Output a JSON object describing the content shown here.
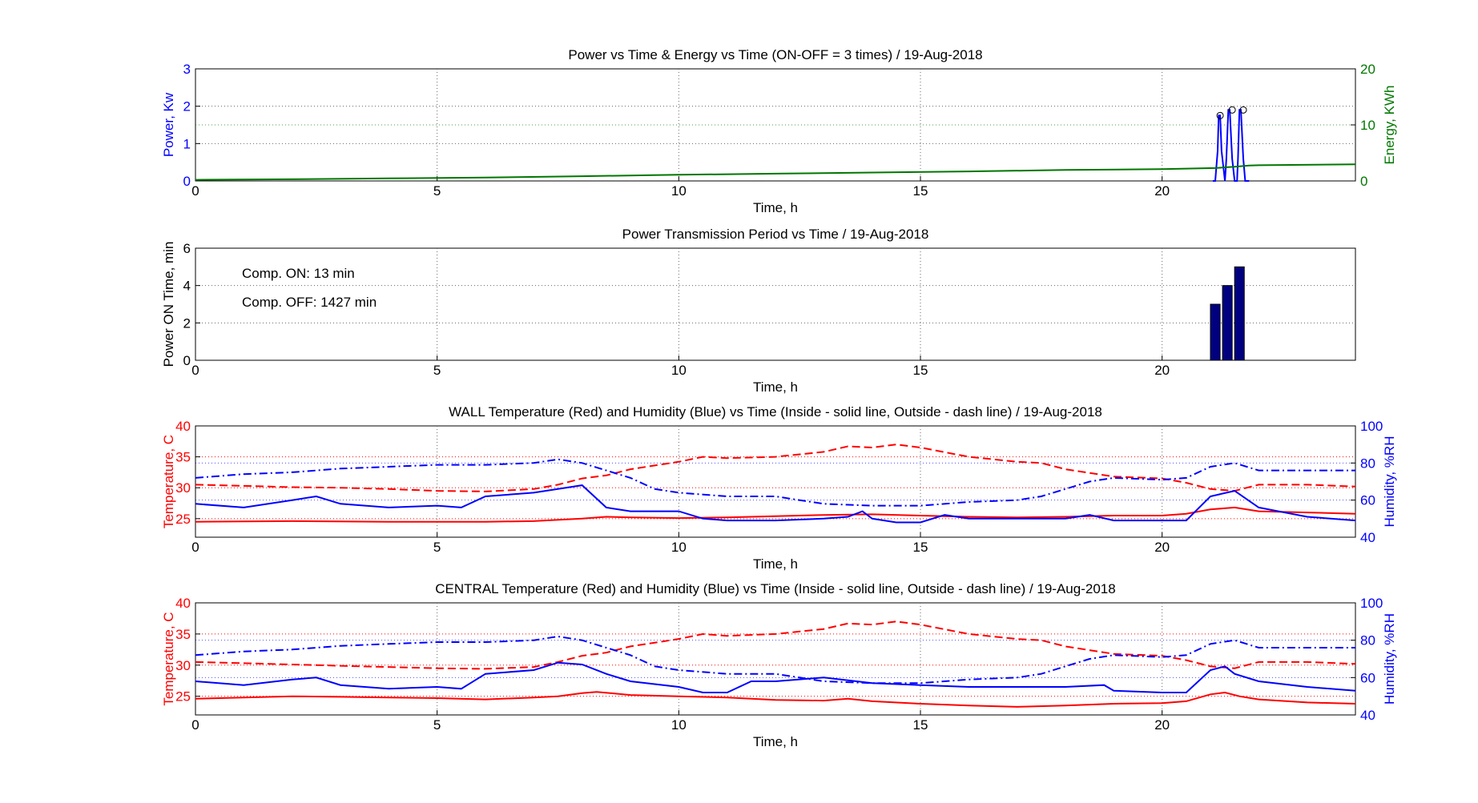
{
  "colors": {
    "power": "#0000ff",
    "energy": "#007700",
    "temperature": "#ff0000",
    "humidity": "#0000ff",
    "bar": "#000080",
    "grid": "#666666",
    "axis": "#000000"
  },
  "chart_data": [
    {
      "id": "power",
      "type": "line",
      "title": "Power vs Time & Energy vs Time (ON-OFF = 3 times) / 19-Aug-2018",
      "xlabel": "Time, h",
      "ylabel": "Power, Kw",
      "y2label": "Energy, KWh",
      "xlim": [
        0,
        24
      ],
      "ylim": [
        0,
        3
      ],
      "y2lim": [
        0,
        20
      ],
      "x_ticks": [
        0,
        5,
        10,
        15,
        20
      ],
      "y_ticks": [
        0,
        1,
        2,
        3
      ],
      "y2_ticks": [
        0,
        10,
        20
      ],
      "grid": true,
      "series": [
        {
          "axis": "left",
          "style": "stem",
          "x": [
            21.05,
            21.1,
            21.15,
            21.17,
            21.2,
            21.23,
            21.3,
            21.33,
            21.37,
            21.4,
            21.45,
            21.5,
            21.55,
            21.57,
            21.6,
            21.63,
            21.68,
            21.72,
            21.75,
            21.8
          ],
          "y": [
            0,
            0,
            0.8,
            1.75,
            1.75,
            0.8,
            0,
            0.6,
            1.9,
            1.9,
            0.6,
            0,
            0,
            0.6,
            1.9,
            1.9,
            0.6,
            0,
            0,
            0
          ],
          "markers": [
            [
              21.2,
              1.75
            ],
            [
              21.45,
              1.9
            ],
            [
              21.68,
              1.9
            ]
          ]
        },
        {
          "axis": "right",
          "style": "line",
          "x": [
            0,
            2,
            4,
            6,
            8,
            10,
            12,
            14,
            16,
            18,
            20,
            21.1,
            21.5,
            21.8,
            22,
            24
          ],
          "y": [
            0.2,
            0.3,
            0.45,
            0.6,
            0.85,
            1.1,
            1.3,
            1.5,
            1.7,
            1.95,
            2.1,
            2.3,
            2.55,
            2.75,
            2.8,
            2.95
          ]
        }
      ]
    },
    {
      "id": "period",
      "type": "bar",
      "title": "Power Transmission Period vs Time / 19-Aug-2018",
      "xlabel": "Time, h",
      "ylabel": "Power ON Time, min",
      "xlim": [
        0,
        24
      ],
      "ylim": [
        0,
        6
      ],
      "x_ticks": [
        0,
        5,
        10,
        15,
        20
      ],
      "y_ticks": [
        0,
        2,
        4,
        6
      ],
      "grid": true,
      "bar_width": 0.2,
      "x": [
        21.1,
        21.35,
        21.6
      ],
      "values": [
        3,
        4,
        5
      ],
      "annotations": [
        "Comp. ON: 13 min",
        "Comp. OFF: 1427 min"
      ]
    },
    {
      "id": "wall",
      "type": "line",
      "title": "WALL Temperature (Red) and Humidity (Blue) vs Time (Inside - solid line, Outside - dash line) / 19-Aug-2018",
      "xlabel": "Time, h",
      "ylabel": "Temperature, C",
      "y2label": "Humidity, %RH",
      "xlim": [
        0,
        24
      ],
      "ylim": [
        22,
        40
      ],
      "y2lim": [
        40,
        100
      ],
      "x_ticks": [
        0,
        5,
        10,
        15,
        20
      ],
      "y_ticks": [
        25,
        30,
        35,
        40
      ],
      "y2_ticks": [
        40,
        60,
        80,
        100
      ],
      "grid": true,
      "series": [
        {
          "color": "red",
          "dash": "solid",
          "axis": "left",
          "x": [
            0,
            2,
            4,
            6,
            7,
            8,
            8.5,
            9,
            10,
            11,
            12,
            13,
            14,
            15,
            16,
            17,
            18,
            19,
            20,
            20.5,
            21,
            21.5,
            22,
            23,
            24
          ],
          "y": [
            24.5,
            24.6,
            24.5,
            24.5,
            24.6,
            25.0,
            25.3,
            25.2,
            25.1,
            25.2,
            25.4,
            25.6,
            25.7,
            25.5,
            25.3,
            25.2,
            25.3,
            25.5,
            25.5,
            25.8,
            26.5,
            26.8,
            26.2,
            26.0,
            25.8
          ]
        },
        {
          "color": "red",
          "dash": "dashed",
          "axis": "left",
          "x": [
            0,
            1,
            2,
            3,
            4,
            5,
            6,
            7,
            7.5,
            8,
            8.5,
            9,
            10,
            10.5,
            11,
            12,
            13,
            13.5,
            14,
            14.5,
            15,
            16,
            17,
            17.5,
            18,
            19,
            20,
            20.5,
            21,
            21.5,
            22,
            23,
            24
          ],
          "y": [
            30.5,
            30.3,
            30.1,
            30.0,
            29.8,
            29.5,
            29.4,
            29.8,
            30.5,
            31.5,
            32.0,
            33.0,
            34.2,
            35.0,
            34.8,
            35.0,
            35.8,
            36.7,
            36.5,
            37.0,
            36.5,
            35.0,
            34.2,
            34.0,
            33.0,
            31.8,
            31.5,
            30.8,
            29.8,
            29.5,
            30.5,
            30.5,
            30.2
          ]
        },
        {
          "color": "blue",
          "dash": "solid",
          "axis": "right",
          "x": [
            0,
            1,
            2,
            2.5,
            3,
            4,
            5,
            5.5,
            6,
            7,
            7.5,
            8,
            8.5,
            9,
            10,
            10.5,
            11,
            12,
            13,
            13.5,
            13.8,
            14,
            14.5,
            15,
            15.5,
            16,
            17,
            18,
            18.5,
            19,
            20,
            20.5,
            21,
            21.5,
            22,
            23,
            24
          ],
          "y": [
            58,
            56,
            60,
            62,
            58,
            56,
            57,
            56,
            62,
            64,
            66,
            68,
            56,
            54,
            54,
            50,
            49,
            49,
            50,
            51,
            54,
            50,
            48,
            48,
            52,
            50,
            50,
            50,
            52,
            49,
            49,
            49,
            62,
            65,
            56,
            51,
            49
          ]
        },
        {
          "color": "blue",
          "dash": "dashdot",
          "axis": "right",
          "x": [
            0,
            1,
            2,
            3,
            4,
            5,
            6,
            7,
            7.5,
            8,
            8.5,
            9,
            9.5,
            10,
            11,
            12,
            12.5,
            13,
            14,
            15,
            16,
            17,
            17.5,
            18,
            18.5,
            19,
            20,
            20.5,
            21,
            21.5,
            22,
            23,
            24
          ],
          "y": [
            72,
            74,
            75,
            77,
            78,
            79,
            79,
            80,
            82,
            80,
            76,
            72,
            66,
            64,
            62,
            62,
            60,
            58,
            57,
            57,
            59,
            60,
            62,
            66,
            70,
            72,
            71,
            72,
            78,
            80,
            76,
            76,
            76
          ]
        }
      ]
    },
    {
      "id": "central",
      "type": "line",
      "title": "CENTRAL Temperature (Red) and Humidity (Blue) vs Time (Inside - solid line, Outside - dash line) / 19-Aug-2018",
      "xlabel": "Time, h",
      "ylabel": "Temperature, C",
      "y2label": "Humidity, %RH",
      "xlim": [
        0,
        24
      ],
      "ylim": [
        22,
        40
      ],
      "y2lim": [
        40,
        100
      ],
      "x_ticks": [
        0,
        5,
        10,
        15,
        20
      ],
      "y_ticks": [
        25,
        30,
        35,
        40
      ],
      "y2_ticks": [
        40,
        60,
        80,
        100
      ],
      "grid": true,
      "series": [
        {
          "color": "red",
          "dash": "solid",
          "axis": "left",
          "x": [
            0,
            1,
            2,
            3,
            4,
            5,
            6,
            7,
            7.5,
            8,
            8.3,
            9,
            10,
            11,
            12,
            13,
            13.5,
            14,
            15,
            16,
            17,
            18,
            19,
            20,
            20.5,
            21,
            21.3,
            21.6,
            22,
            23,
            24
          ],
          "y": [
            24.6,
            24.8,
            25.0,
            24.9,
            24.8,
            24.7,
            24.5,
            24.8,
            25.0,
            25.5,
            25.7,
            25.2,
            25.0,
            24.8,
            24.4,
            24.3,
            24.6,
            24.2,
            23.8,
            23.5,
            23.3,
            23.5,
            23.8,
            23.9,
            24.2,
            25.3,
            25.6,
            25.0,
            24.5,
            24.0,
            23.8
          ]
        },
        {
          "color": "red",
          "dash": "dashed",
          "axis": "left",
          "x": [
            0,
            1,
            2,
            3,
            4,
            5,
            6,
            7,
            7.5,
            8,
            8.5,
            9,
            10,
            10.5,
            11,
            12,
            13,
            13.5,
            14,
            14.5,
            15,
            16,
            17,
            17.5,
            18,
            19,
            20,
            20.5,
            21,
            21.5,
            22,
            23,
            24
          ],
          "y": [
            30.5,
            30.3,
            30.1,
            29.9,
            29.7,
            29.5,
            29.4,
            29.7,
            30.5,
            31.5,
            32.0,
            33.0,
            34.2,
            35.0,
            34.7,
            35.0,
            35.8,
            36.7,
            36.5,
            37.0,
            36.5,
            35.0,
            34.2,
            34.0,
            33.0,
            31.8,
            31.5,
            30.8,
            29.8,
            29.5,
            30.5,
            30.5,
            30.2
          ]
        },
        {
          "color": "blue",
          "dash": "solid",
          "axis": "right",
          "x": [
            0,
            1,
            2,
            2.5,
            3,
            4,
            5,
            5.5,
            6,
            7,
            7.5,
            8,
            8.5,
            9,
            10,
            10.5,
            11,
            11.5,
            12,
            13,
            14,
            15,
            16,
            17,
            18,
            18.8,
            19,
            20,
            20.5,
            21,
            21.3,
            21.5,
            22,
            23,
            24
          ],
          "y": [
            58,
            56,
            59,
            60,
            56,
            54,
            55,
            54,
            62,
            64,
            68,
            67,
            62,
            58,
            55,
            52,
            52,
            58,
            58,
            60,
            57,
            56,
            55,
            55,
            55,
            56,
            53,
            52,
            52,
            64,
            66,
            62,
            58,
            55,
            53
          ]
        },
        {
          "color": "blue",
          "dash": "dashdot",
          "axis": "right",
          "x": [
            0,
            1,
            2,
            3,
            4,
            5,
            6,
            7,
            7.5,
            8,
            8.5,
            9,
            9.5,
            10,
            11,
            12,
            12.5,
            13,
            14,
            15,
            16,
            17,
            17.5,
            18,
            18.5,
            19,
            20,
            20.5,
            21,
            21.5,
            22,
            23,
            24
          ],
          "y": [
            72,
            74,
            75,
            77,
            78,
            79,
            79,
            80,
            82,
            80,
            76,
            72,
            66,
            64,
            62,
            62,
            60,
            58,
            57,
            57,
            59,
            60,
            62,
            66,
            70,
            72,
            71,
            72,
            78,
            80,
            76,
            76,
            76
          ]
        }
      ]
    }
  ]
}
